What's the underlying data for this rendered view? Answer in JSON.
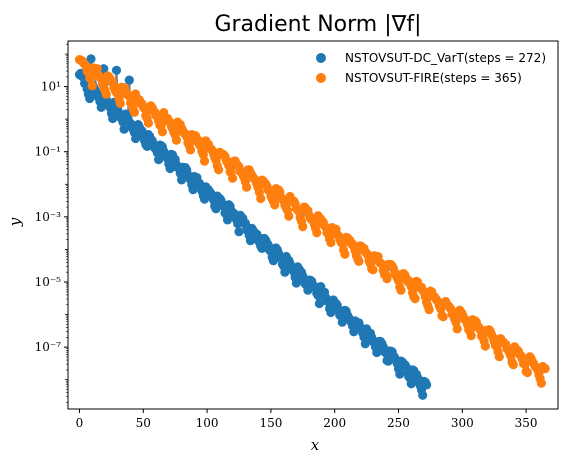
{
  "chart_data": {
    "type": "scatter",
    "title": "Gradient Norm |∇f|",
    "xlabel": "x",
    "ylabel": "y",
    "xlim": [
      -9,
      375
    ],
    "ylim_log10": [
      -8.9,
      2.4
    ],
    "y_scale": "log",
    "x_ticks": [
      0,
      50,
      100,
      150,
      200,
      250,
      300,
      350
    ],
    "x_tick_labels": [
      "0",
      "50",
      "100",
      "150",
      "200",
      "250",
      "300",
      "350"
    ],
    "y_ticks_log10": [
      1,
      -1,
      -3,
      -5,
      -7
    ],
    "y_tick_labels": [
      "10¹",
      "10⁻¹",
      "10⁻³",
      "10⁻⁵",
      "10⁻⁷"
    ],
    "grid": false,
    "legend_position": "top-right",
    "connector_color": "#808080",
    "series": [
      {
        "name": "NSTOVSUT-DC_VarT(steps = 272)",
        "color": "#1f77b4",
        "steps": 272,
        "start_log10": 1.1,
        "end_log10": -8.4,
        "restart_period": 9,
        "wobble_amplitude": 0.25,
        "spikes": [
          {
            "x": 9,
            "log10_y": 1.85
          },
          {
            "x": 19,
            "log10_y": 1.55
          },
          {
            "x": 29,
            "log10_y": 1.5
          },
          {
            "x": 39,
            "log10_y": 1.2
          }
        ]
      },
      {
        "name": "NSTOVSUT-FIRE(steps = 365)",
        "color": "#ff7f0e",
        "steps": 365,
        "start_log10": 1.5,
        "end_log10": -8.0,
        "restart_period": 11,
        "wobble_amplitude": 0.3,
        "spikes": [
          {
            "x": 14,
            "log10_y": 1.55
          }
        ]
      }
    ]
  }
}
